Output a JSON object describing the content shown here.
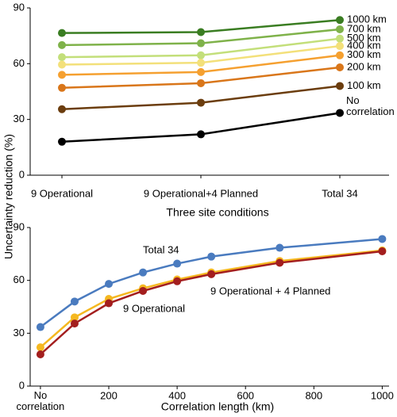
{
  "chart_data": [
    {
      "type": "line",
      "ylabel": "Uncertainty reduction (%)",
      "xlabel": "Three site conditions",
      "categories": [
        "9 Operational",
        "9 Operational+4 Planned",
        "Total 34"
      ],
      "ylim": [
        0,
        90
      ],
      "yticks": [
        0,
        30,
        60,
        90
      ],
      "series": [
        {
          "name": "1000 km",
          "color": "#3a7d22",
          "values": [
            76.5,
            77,
            83.5
          ]
        },
        {
          "name": "700 km",
          "color": "#7fb24a",
          "values": [
            70,
            71,
            78.5
          ]
        },
        {
          "name": "500 km",
          "color": "#c3df7a",
          "values": [
            63.5,
            64.5,
            73.5
          ]
        },
        {
          "name": "400 km",
          "color": "#f3e07a",
          "values": [
            59.5,
            60.5,
            69.5
          ]
        },
        {
          "name": "300 km",
          "color": "#f5a030",
          "values": [
            54,
            55.5,
            64.5
          ]
        },
        {
          "name": "200 km",
          "color": "#d9761a",
          "values": [
            47,
            49.5,
            58
          ]
        },
        {
          "name": "100 km",
          "color": "#6b3d0e",
          "values": [
            35.5,
            39,
            48
          ]
        },
        {
          "name": "No correlation",
          "color": "#000000",
          "values": [
            18,
            22,
            33.5
          ]
        }
      ]
    },
    {
      "type": "line",
      "xlabel": "Correlation length (km)",
      "x": [
        0,
        100,
        200,
        300,
        400,
        500,
        700,
        1000
      ],
      "xlim": [
        -30,
        1020
      ],
      "xticks": [
        {
          "value": 0,
          "label": "No correlation"
        },
        200,
        400,
        600,
        800,
        1000
      ],
      "ylim": [
        0,
        90
      ],
      "yticks": [
        0,
        30,
        60,
        90
      ],
      "series": [
        {
          "name": "Total 34",
          "color": "#4a7bbf",
          "values": [
            33.5,
            48,
            58,
            64.5,
            69.5,
            73.5,
            78.5,
            83.5
          ]
        },
        {
          "name": "9 Operational + 4 Planned",
          "color": "#f5b820",
          "values": [
            22,
            39,
            49.5,
            55.5,
            60.5,
            64.5,
            71,
            77
          ]
        },
        {
          "name": "9 Operational",
          "color": "#a31e1e",
          "values": [
            18,
            35.5,
            47,
            54,
            59.5,
            63.5,
            70,
            76.5
          ]
        }
      ]
    }
  ]
}
